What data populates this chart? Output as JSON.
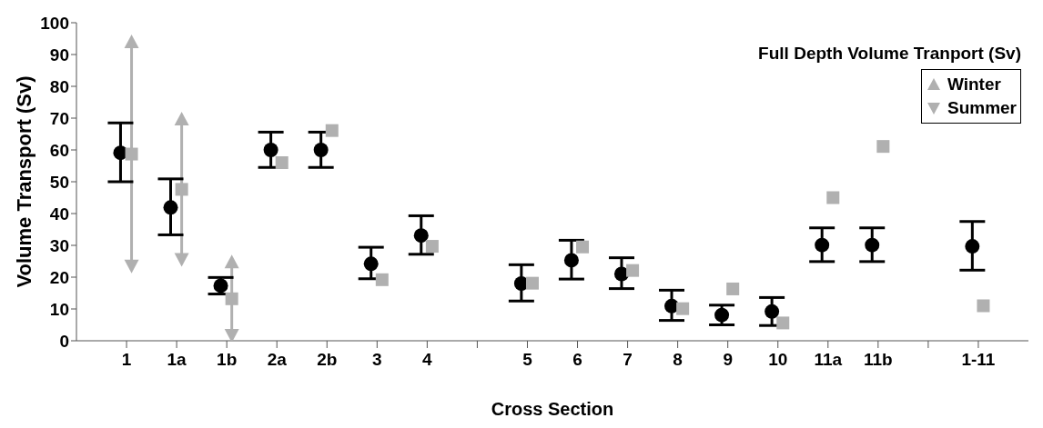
{
  "chart_data": {
    "type": "scatter",
    "xlabel": "Cross Section",
    "ylabel": "Volume Transport (Sv)",
    "legend_title": "Full Depth Volume Tranport (Sv)",
    "legend": "top right",
    "grid": false,
    "categories": [
      "1",
      "1a",
      "1b",
      "2a",
      "2b",
      "3",
      "4",
      null,
      "5",
      "6",
      "7",
      "8",
      "9",
      "10",
      "11a",
      "11b",
      null,
      "1-11"
    ],
    "ylim": [
      0,
      100
    ],
    "yticks": [
      0,
      10,
      20,
      30,
      40,
      50,
      60,
      70,
      80,
      90,
      100
    ],
    "series": [
      {
        "color": "#000000",
        "marker": "circle",
        "values": [
          59.1,
          41.9,
          17.3,
          60,
          60,
          24.2,
          33.1,
          null,
          18,
          25.3,
          21,
          10.9,
          8.1,
          9.2,
          30.1,
          30.1,
          null,
          29.7
        ],
        "errors": [
          [
            50,
            68.5
          ],
          [
            33.3,
            50.9
          ],
          [
            14.7,
            19.9
          ],
          [
            54.5,
            65.6
          ],
          [
            54.5,
            65.6
          ],
          [
            19.5,
            29.4
          ],
          [
            27.2,
            39.3
          ],
          null,
          [
            12.5,
            23.9
          ],
          [
            19.4,
            31.6
          ],
          [
            16.4,
            26.1
          ],
          [
            6.4,
            15.9
          ],
          [
            5,
            11.2
          ],
          [
            4.8,
            13.6
          ],
          [
            24.9,
            35.5
          ],
          [
            24.9,
            35.5
          ],
          null,
          [
            22.2,
            37.5
          ]
        ]
      },
      {
        "color": "#b0b0b0",
        "marker": "square",
        "values": [
          58.7,
          47.6,
          13.2,
          56,
          66.1,
          19.2,
          29.7,
          null,
          18.1,
          29.5,
          22.1,
          10.1,
          16.3,
          5.6,
          45,
          61.1,
          null,
          11
        ]
      },
      {
        "name": "Winter",
        "color": "#b0b0b0",
        "marker": "triangle",
        "values": [
          94,
          69.7,
          24.8,
          null,
          null,
          null,
          null,
          null,
          null,
          null,
          null,
          null,
          null,
          null,
          null,
          null,
          null,
          null
        ]
      },
      {
        "name": "Summer",
        "color": "#b0b0b0",
        "marker": "triangle-down",
        "values": [
          23.5,
          25.6,
          1.7,
          null,
          null,
          null,
          null,
          null,
          null,
          null,
          null,
          null,
          null,
          null,
          null,
          null,
          null,
          null
        ]
      }
    ]
  }
}
